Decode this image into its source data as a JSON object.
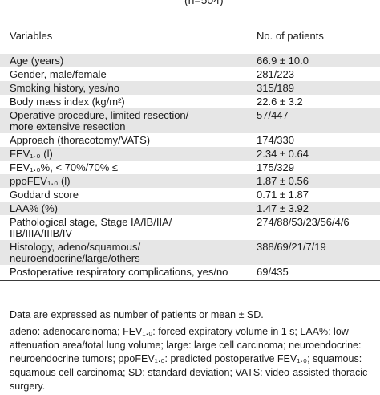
{
  "title_fragment": "(n=504)",
  "header": {
    "col_variables": "Variables",
    "col_patients": "No. of patients"
  },
  "rows": [
    {
      "variable": "Age (years)",
      "value": "66.9 ± 10.0",
      "shaded": true
    },
    {
      "variable": "Gender, male/female",
      "value": "281/223",
      "shaded": false
    },
    {
      "variable": "Smoking history, yes/no",
      "value": "315/189",
      "shaded": true
    },
    {
      "variable": "Body mass index (kg/m²)",
      "value": "22.6 ± 3.2",
      "shaded": false
    },
    {
      "variable": "Operative procedure, limited resection/\nmore extensive resection",
      "value": "57/447",
      "shaded": true
    },
    {
      "variable": "Approach (thoracotomy/VATS)",
      "value": "174/330",
      "shaded": false
    },
    {
      "variable": "FEV₁.₀ (l)",
      "value": "2.34 ± 0.64",
      "shaded": true
    },
    {
      "variable": "FEV₁.₀%, < 70%/70% ≤",
      "value": "175/329",
      "shaded": false
    },
    {
      "variable": "ppoFEV₁.₀ (l)",
      "value": "1.87 ± 0.56",
      "shaded": true
    },
    {
      "variable": "Goddard score",
      "value": "0.71 ± 1.87",
      "shaded": false
    },
    {
      "variable": "LAA% (%)",
      "value": "1.47 ± 3.92",
      "shaded": true
    },
    {
      "variable": "Pathological stage, Stage IA/IB/IIA/\nIIB/IIIA/IIIB/IV",
      "value": "274/88/53/23/56/4/6",
      "shaded": false
    },
    {
      "variable": "Histology, adeno/squamous/\nneuroendocrine/large/others",
      "value": "388/69/21/7/19",
      "shaded": true
    },
    {
      "variable": "Postoperative respiratory complications, yes/no",
      "value": "69/435",
      "shaded": false
    }
  ],
  "notes": {
    "expressed": "Data are expressed as number of patients or mean ± SD.",
    "abbreviations": "adeno: adenocarcinoma; FEV₁.₀: forced expiratory volume in 1 s; LAA%: low attenuation area/total lung volume; large: large cell carcinoma; neuroendocrine: neuroendocrine tumors; ppoFEV₁.₀: predicted postoperative FEV₁.₀; squamous: squamous cell carcinoma; SD: standard deviation; VATS: video-assisted thoracic surgery."
  }
}
